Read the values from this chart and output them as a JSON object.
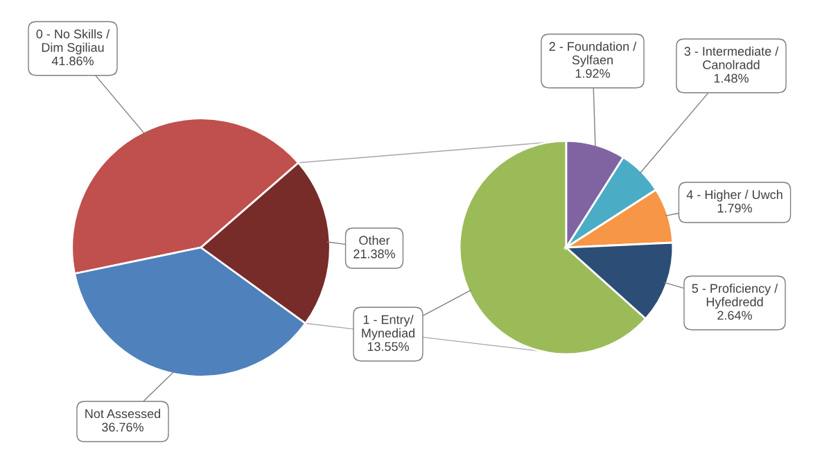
{
  "chart_data": [
    {
      "type": "pie",
      "categories": [
        "0 - No Skills /\nDim Sgiliau",
        "Not Assessed",
        "Other"
      ],
      "values": [
        41.86,
        36.76,
        21.38
      ],
      "colors": [
        "#c0504d",
        "#4f81bd",
        "#772c2a"
      ],
      "value_labels": [
        "41.86%",
        "36.76%",
        "21.38%"
      ]
    },
    {
      "type": "pie",
      "categories": [
        "1 - Entry/\nMynediad",
        "2 - Foundation /\nSylfaen",
        "3 - Intermediate /\nCanolradd",
        "4 - Higher / Uwch",
        "5 - Proficiency /\nHyfedredd"
      ],
      "values": [
        13.55,
        1.92,
        1.48,
        1.79,
        2.64
      ],
      "colors": [
        "#9bbb59",
        "#8064a2",
        "#4bacc6",
        "#f79646",
        "#2c4d75"
      ],
      "value_labels": [
        "13.55%",
        "1.92%",
        "1.48%",
        "1.79%",
        "2.64%"
      ]
    }
  ]
}
